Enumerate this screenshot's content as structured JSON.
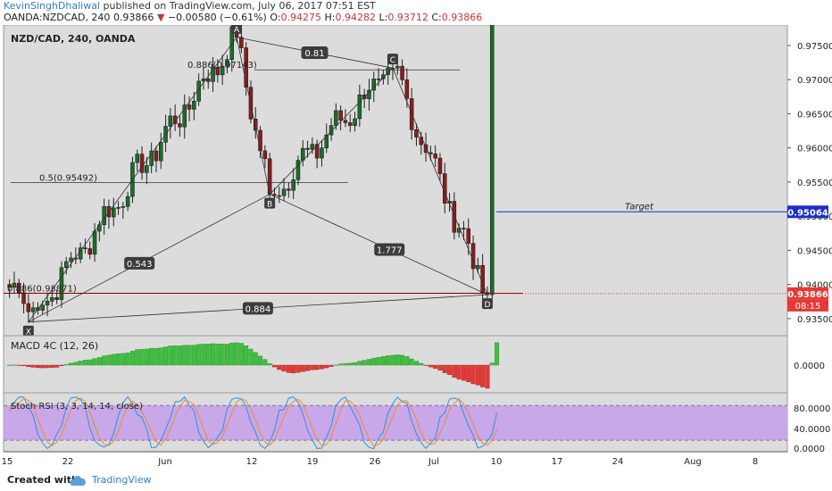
{
  "header": {
    "author": "KevinSinghDhaliwal",
    "published": "published on TradingView.com, July 06, 2017 07:51 EST",
    "symbol_line": "OANDA:NZDCAD, 240",
    "last": "0.93866",
    "change": "−0.00580 (−0.61%)",
    "open_label": "O:",
    "open": "0.94275",
    "high_label": "H:",
    "high": "0.94282",
    "low_label": "L:",
    "low": "0.93712",
    "close_label": "C:",
    "close": "0.93866"
  },
  "footer": {
    "created_with": "Created with",
    "brand": "TradingView"
  },
  "colors": {
    "up": "#1a6e2a",
    "down": "#8a1e1e",
    "target": "#1e2ec8",
    "price_tag": "#e53935",
    "macd_pos": "#3fbf3f",
    "macd_neg": "#e53935",
    "stoch_fill": "#c8a8e8",
    "stoch_k": "#2f8fe0",
    "stoch_d": "#f08a30",
    "pane_bg": "#dcdcdc"
  },
  "chart_data": [
    {
      "type": "candlestick",
      "title": "NZD/CAD, 240, OANDA",
      "yticks": [
        "0.97500",
        "0.97000",
        "0.96500",
        "0.96000",
        "0.95500",
        "0.95000",
        "0.94500",
        "0.94000",
        "0.93500"
      ],
      "yrange": [
        0.9325,
        0.978
      ],
      "x_ticks": [
        "15",
        "22",
        "Jun",
        "12",
        "19",
        "26",
        "Jul",
        "10",
        "17",
        "24",
        "Aug",
        "8"
      ],
      "pivots": [
        {
          "label": "X",
          "x": 0,
          "y": 0.9345
        },
        {
          "label": "A",
          "x": 44,
          "y": 0.9762
        },
        {
          "label": "B",
          "x": 51,
          "y": 0.9532
        },
        {
          "label": "C",
          "x": 77,
          "y": 0.9717
        },
        {
          "label": "D",
          "x": 97,
          "y": 0.9385
        }
      ],
      "ratios": [
        "0.543",
        "0.81",
        "1.777",
        "0.884"
      ],
      "levels": [
        {
          "label": "0.886(0.97143)",
          "value": 0.97143
        },
        {
          "label": "0.5(0.95492)",
          "value": 0.95492
        },
        {
          "label": "0.886(0.93871)",
          "value": 0.93871
        }
      ],
      "target": {
        "label": "Target",
        "value": 0.95064,
        "tag": "0.95064"
      },
      "last_price": {
        "value": 0.93866,
        "tag": "0.93866",
        "countdown": "08:15"
      },
      "candles": []
    },
    {
      "type": "bar",
      "title": "MACD 4C (12, 26)",
      "yticks": [
        "0.0000"
      ],
      "values": []
    },
    {
      "type": "line",
      "title": "Stoch RSI (3, 3, 14, 14, close)",
      "yticks": [
        "80.0000",
        "40.0000",
        "0.0000"
      ],
      "band": [
        20,
        80
      ],
      "series": [
        {
          "values": []
        },
        {
          "values": []
        }
      ]
    }
  ]
}
